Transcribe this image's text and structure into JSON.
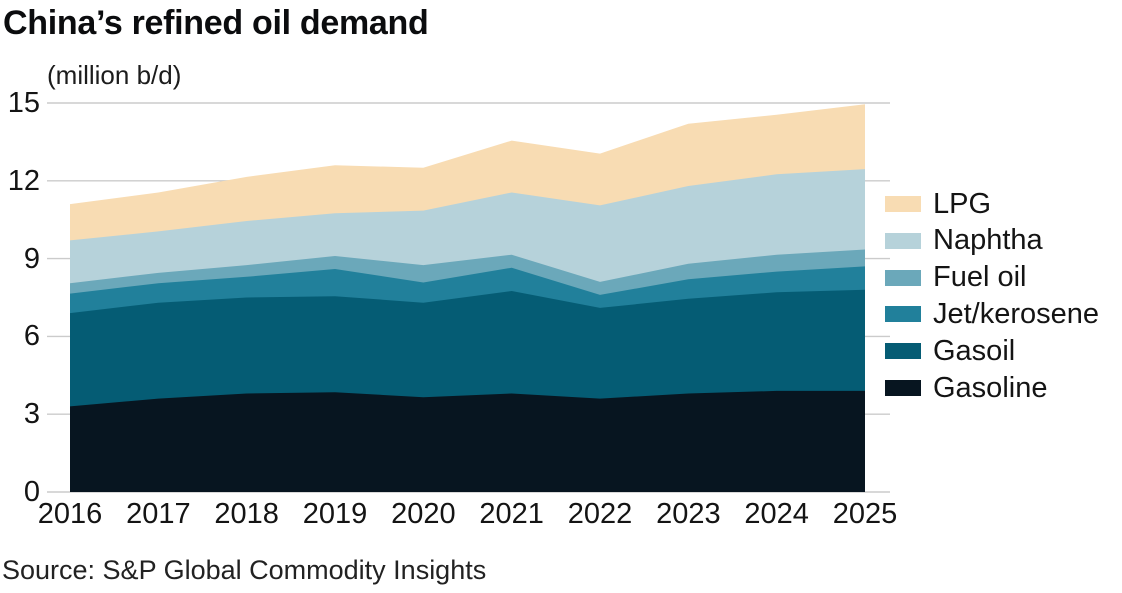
{
  "title": "China’s refined oil demand",
  "subtitle": "(million b/d)",
  "source": "Source: S&P Global Commodity Insights",
  "colors": {
    "background": "#ffffff",
    "gridline": "#cbcbcb",
    "text": "#141414",
    "title_text": "#0b0c0e"
  },
  "chart_data": {
    "type": "area",
    "stacked": true,
    "title": "China’s refined oil demand",
    "ylabel": "(million b/d)",
    "xlabel": "",
    "x": [
      "2016",
      "2017",
      "2018",
      "2019",
      "2020",
      "2021",
      "2022",
      "2023",
      "2024",
      "2025"
    ],
    "y_ticks": [
      0,
      3,
      6,
      9,
      12,
      15
    ],
    "ylim": [
      0,
      15
    ],
    "grid": true,
    "legend_position": "right",
    "series": [
      {
        "name": "Gasoline",
        "color": "#071520",
        "values": [
          3.3,
          3.6,
          3.8,
          3.85,
          3.65,
          3.8,
          3.6,
          3.8,
          3.9,
          3.9
        ]
      },
      {
        "name": "Gasoil",
        "color": "#055c74",
        "values": [
          3.6,
          3.7,
          3.7,
          3.7,
          3.65,
          3.95,
          3.5,
          3.65,
          3.8,
          3.9
        ]
      },
      {
        "name": "Jet/kerosene",
        "color": "#21809b",
        "values": [
          0.75,
          0.75,
          0.8,
          1.05,
          0.78,
          0.9,
          0.5,
          0.75,
          0.8,
          0.9
        ]
      },
      {
        "name": "Fuel oil",
        "color": "#6ba8ba",
        "values": [
          0.4,
          0.4,
          0.45,
          0.5,
          0.67,
          0.5,
          0.5,
          0.6,
          0.65,
          0.65
        ]
      },
      {
        "name": "Naphtha",
        "color": "#b6d2da",
        "values": [
          1.65,
          1.6,
          1.7,
          1.65,
          2.1,
          2.4,
          2.95,
          3.0,
          3.1,
          3.1
        ]
      },
      {
        "name": "LPG",
        "color": "#f8dcb3",
        "values": [
          1.4,
          1.5,
          1.7,
          1.85,
          1.65,
          2.0,
          2.0,
          2.4,
          2.3,
          2.5
        ]
      }
    ],
    "legend_items_top_to_bottom": [
      "LPG",
      "Naphtha",
      "Fuel oil",
      "Jet/kerosene",
      "Gasoil",
      "Gasoline"
    ]
  }
}
